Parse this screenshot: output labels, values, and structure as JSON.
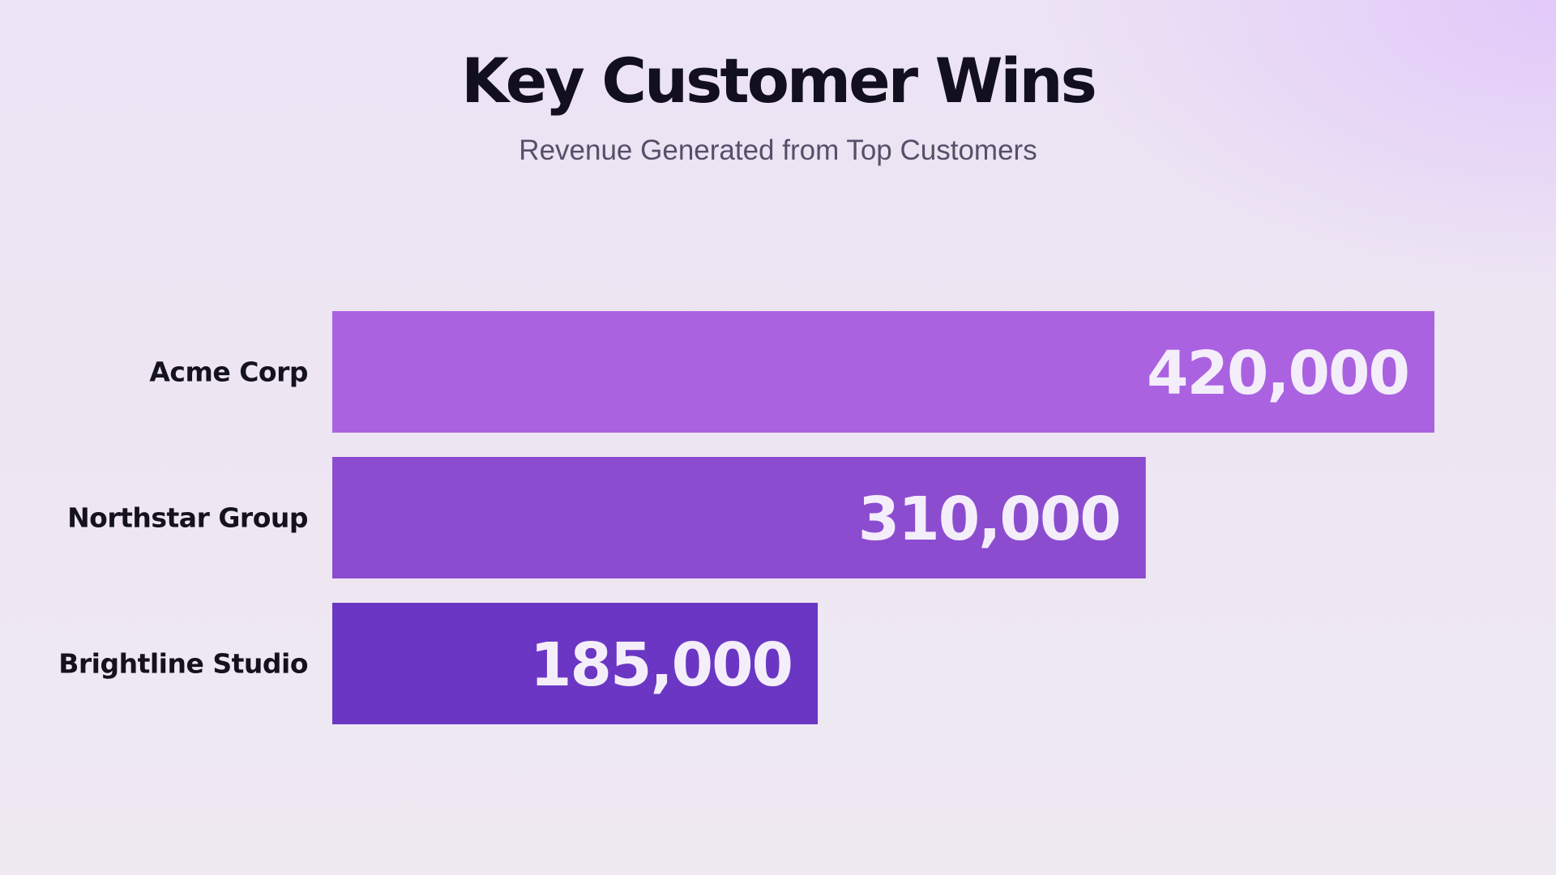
{
  "header": {
    "title": "Key Customer Wins",
    "subtitle": "Revenue Generated from Top Customers"
  },
  "chart_data": {
    "type": "bar",
    "orientation": "horizontal",
    "title": "Key Customer Wins",
    "subtitle": "Revenue Generated from Top Customers",
    "categories": [
      "Acme Corp",
      "Northstar Group",
      "Brightline Studio"
    ],
    "values": [
      420000,
      310000,
      185000
    ],
    "value_labels": [
      "420,000",
      "310,000",
      "185,000"
    ],
    "xlabel": "",
    "ylabel": "",
    "xlim": [
      0,
      420000
    ],
    "grid": false,
    "legend": "none",
    "colors": [
      "#ab62e0",
      "#8c4ccf",
      "#6b36c4"
    ],
    "label_color_inside": "#f4eefb",
    "label_color_outside": "#120f1e"
  }
}
